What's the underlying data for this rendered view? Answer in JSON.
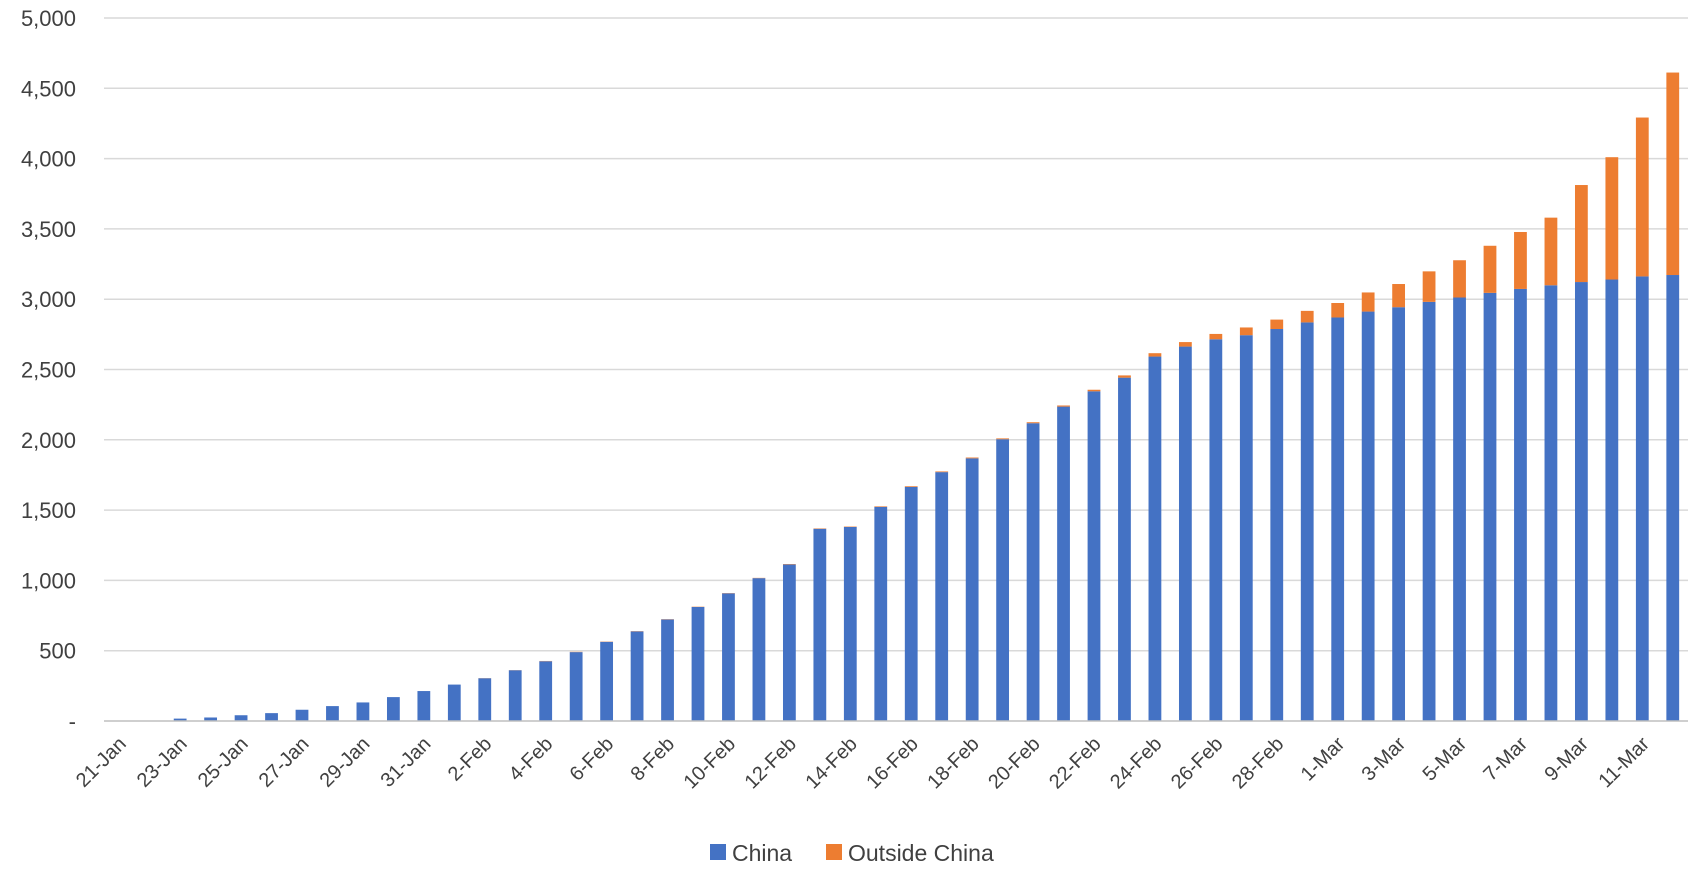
{
  "chart_data": {
    "type": "bar",
    "stacked": true,
    "title": "",
    "xlabel": "",
    "ylabel": "",
    "ylim": [
      0,
      5000
    ],
    "grid": true,
    "legend_position": "bottom-center",
    "y_ticks": [
      "-",
      "500",
      "1,000",
      "1,500",
      "2,000",
      "2,500",
      "3,000",
      "3,500",
      "4,000",
      "4,500",
      "5,000"
    ],
    "y_tick_values": [
      0,
      500,
      1000,
      1500,
      2000,
      2500,
      3000,
      3500,
      4000,
      4500,
      5000
    ],
    "categories": [
      "21-Jan",
      "22-Jan",
      "23-Jan",
      "24-Jan",
      "25-Jan",
      "26-Jan",
      "27-Jan",
      "28-Jan",
      "29-Jan",
      "30-Jan",
      "31-Jan",
      "1-Feb",
      "2-Feb",
      "3-Feb",
      "4-Feb",
      "5-Feb",
      "6-Feb",
      "7-Feb",
      "8-Feb",
      "9-Feb",
      "10-Feb",
      "11-Feb",
      "12-Feb",
      "13-Feb",
      "14-Feb",
      "15-Feb",
      "16-Feb",
      "17-Feb",
      "18-Feb",
      "19-Feb",
      "20-Feb",
      "21-Feb",
      "22-Feb",
      "23-Feb",
      "24-Feb",
      "25-Feb",
      "26-Feb",
      "27-Feb",
      "28-Feb",
      "29-Feb",
      "1-Mar",
      "2-Mar",
      "3-Mar",
      "4-Mar",
      "5-Mar",
      "6-Mar",
      "7-Mar",
      "8-Mar",
      "9-Mar",
      "10-Mar",
      "11-Mar",
      "12-Mar"
    ],
    "x_tick_labels": [
      "21-Jan",
      "",
      "23-Jan",
      "",
      "25-Jan",
      "",
      "27-Jan",
      "",
      "29-Jan",
      "",
      "31-Jan",
      "",
      "2-Feb",
      "",
      "4-Feb",
      "",
      "6-Feb",
      "",
      "8-Feb",
      "",
      "10-Feb",
      "",
      "12-Feb",
      "",
      "14-Feb",
      "",
      "16-Feb",
      "",
      "18-Feb",
      "",
      "20-Feb",
      "",
      "22-Feb",
      "",
      "24-Feb",
      "",
      "26-Feb",
      "",
      "28-Feb",
      "",
      "1-Mar",
      "",
      "3-Mar",
      "",
      "5-Mar",
      "",
      "7-Mar",
      "",
      "9-Mar",
      "",
      "11-Mar",
      ""
    ],
    "series": [
      {
        "name": "China",
        "color": "#4472C4",
        "values": [
          0,
          0,
          17,
          25,
          41,
          56,
          80,
          106,
          132,
          170,
          213,
          259,
          304,
          361,
          425,
          490,
          563,
          637,
          722,
          811,
          908,
          1016,
          1113,
          1367,
          1380,
          1523,
          1665,
          1770,
          1868,
          2004,
          2118,
          2236,
          2345,
          2442,
          2592,
          2663,
          2715,
          2744,
          2788,
          2835,
          2870,
          2912,
          2943,
          2981,
          3012,
          3045,
          3073,
          3099,
          3122,
          3140,
          3162,
          3172
        ]
      },
      {
        "name": "Outside China",
        "color": "#ED7D31",
        "values": [
          0,
          0,
          0,
          0,
          0,
          0,
          0,
          0,
          0,
          0,
          0,
          0,
          1,
          1,
          2,
          2,
          2,
          2,
          2,
          2,
          2,
          2,
          3,
          3,
          3,
          4,
          5,
          5,
          6,
          6,
          7,
          8,
          11,
          16,
          24,
          32,
          38,
          55,
          67,
          82,
          103,
          136,
          165,
          217,
          265,
          335,
          405,
          481,
          690,
          870,
          1130,
          1440
        ]
      }
    ]
  }
}
